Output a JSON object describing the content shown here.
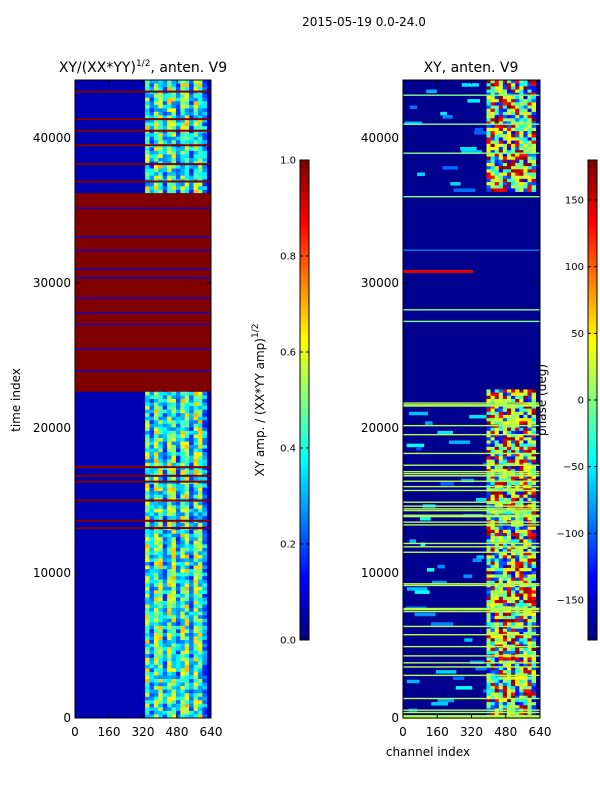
{
  "suptitle": "2015-05-19 0.0-24.0",
  "chart_data": [
    {
      "type": "heatmap",
      "title_main": "XY/(XX*YY)",
      "title_exp": "1/2",
      "title_tail": ", anten. V9",
      "ylabel": "time index",
      "xlabel": "",
      "xlim": [
        0,
        640
      ],
      "ylim": [
        0,
        44000
      ],
      "x_ticks": [
        "0",
        "160",
        "320",
        "480",
        "640"
      ],
      "y_ticks": [
        "0",
        "10000",
        "20000",
        "30000",
        "40000"
      ],
      "background_value": 0.05,
      "saturated_bands": [
        [
          22500,
          36200
        ],
        [
          26000,
          27500
        ],
        [
          28300,
          30200
        ],
        [
          30900,
          32100
        ]
      ],
      "thin_saturated_rows": [
        13100,
        13600,
        15000,
        16300,
        16700,
        17300,
        37000,
        38200,
        39500,
        40500,
        41300,
        43200
      ],
      "active_channel_range": [
        330,
        620
      ],
      "colorbar": {
        "label_main": "XY amp. / (XX*YY amp)",
        "label_exp": "1/2",
        "range": [
          0,
          1
        ],
        "ticks": [
          "0.0",
          "0.2",
          "0.4",
          "0.6",
          "0.8",
          "1.0"
        ]
      }
    },
    {
      "type": "heatmap",
      "title": "XY, anten. V9",
      "ylabel": "",
      "xlabel": "channel index",
      "xlim": [
        0,
        640
      ],
      "ylim": [
        0,
        44000
      ],
      "x_ticks": [
        "0",
        "160",
        "320",
        "480",
        "640"
      ],
      "y_ticks": [
        "0",
        "10000",
        "20000",
        "30000",
        "40000"
      ],
      "background_value": -175,
      "dark_band": [
        22700,
        36300
      ],
      "active_channel_range": [
        390,
        620
      ],
      "colorbar": {
        "label": "phase (deg)",
        "range": [
          -180,
          180
        ],
        "ticks": [
          "-150",
          "-100",
          "-50",
          "0",
          "50",
          "100",
          "150"
        ]
      }
    }
  ]
}
